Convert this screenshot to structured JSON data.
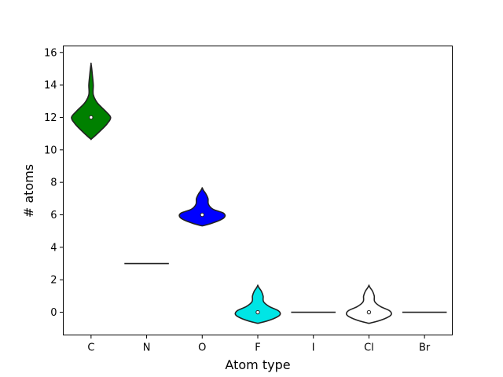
{
  "chart_data": {
    "type": "violin",
    "xlabel": "Atom type",
    "ylabel": "# atoms",
    "ylim": [
      -1.4,
      16.4
    ],
    "yticks": [
      0,
      2,
      4,
      6,
      8,
      10,
      12,
      14,
      16
    ],
    "categories": [
      "C",
      "N",
      "O",
      "F",
      "I",
      "Cl",
      "Br"
    ],
    "grid": false,
    "series": [
      {
        "category": "C",
        "color": "#008000",
        "median": 12,
        "min": 10.7,
        "max": 15.3,
        "profile": [
          [
            10.7,
            0.02
          ],
          [
            11.2,
            0.22
          ],
          [
            11.6,
            0.36
          ],
          [
            12.0,
            0.44
          ],
          [
            12.4,
            0.32
          ],
          [
            12.9,
            0.14
          ],
          [
            13.4,
            0.05
          ],
          [
            14.0,
            0.05
          ],
          [
            14.6,
            0.03
          ],
          [
            15.0,
            0.015
          ],
          [
            15.3,
            0.0
          ]
        ]
      },
      {
        "category": "N",
        "color": "#000000",
        "median": 3,
        "min": 3,
        "max": 3,
        "flat": true,
        "profile": []
      },
      {
        "category": "O",
        "color": "#0000ff",
        "median": 6,
        "min": 5.35,
        "max": 7.65,
        "profile": [
          [
            5.35,
            0.05
          ],
          [
            5.6,
            0.34
          ],
          [
            5.85,
            0.5
          ],
          [
            6.1,
            0.48
          ],
          [
            6.35,
            0.24
          ],
          [
            6.65,
            0.14
          ],
          [
            7.0,
            0.13
          ],
          [
            7.3,
            0.08
          ],
          [
            7.5,
            0.03
          ],
          [
            7.65,
            0.0
          ]
        ]
      },
      {
        "category": "F",
        "color": "#00e5e5",
        "median": 0,
        "min": -0.65,
        "max": 1.65,
        "profile": [
          [
            -0.65,
            0.05
          ],
          [
            -0.4,
            0.35
          ],
          [
            -0.15,
            0.5
          ],
          [
            0.1,
            0.46
          ],
          [
            0.35,
            0.26
          ],
          [
            0.65,
            0.13
          ],
          [
            1.0,
            0.12
          ],
          [
            1.3,
            0.08
          ],
          [
            1.5,
            0.03
          ],
          [
            1.65,
            0.0
          ]
        ]
      },
      {
        "category": "I",
        "color": "#000000",
        "median": 0,
        "min": 0,
        "max": 0,
        "flat": true,
        "profile": []
      },
      {
        "category": "Cl",
        "color": "#ffffff",
        "median": 0,
        "min": -0.65,
        "max": 1.65,
        "profile": [
          [
            -0.65,
            0.05
          ],
          [
            -0.4,
            0.35
          ],
          [
            -0.15,
            0.5
          ],
          [
            0.1,
            0.46
          ],
          [
            0.35,
            0.26
          ],
          [
            0.65,
            0.13
          ],
          [
            1.0,
            0.12
          ],
          [
            1.3,
            0.08
          ],
          [
            1.5,
            0.03
          ],
          [
            1.65,
            0.0
          ]
        ]
      },
      {
        "category": "Br",
        "color": "#000000",
        "median": 0,
        "min": 0,
        "max": 0,
        "flat": true,
        "profile": []
      }
    ]
  }
}
